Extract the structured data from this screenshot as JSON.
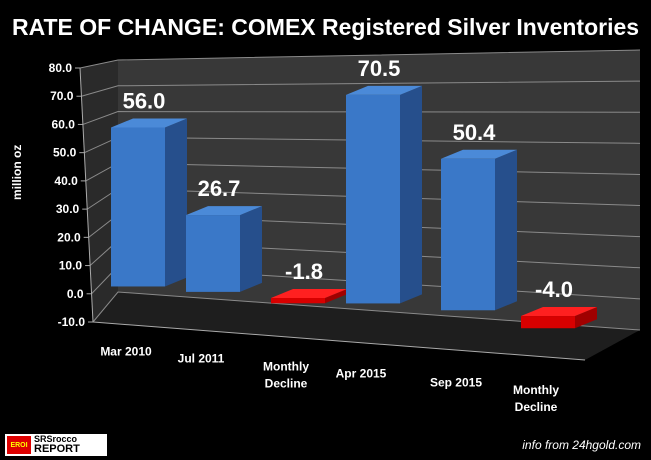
{
  "chart_data": {
    "type": "bar",
    "title": "RATE OF CHANGE: COMEX Registered Silver Inventories",
    "ylabel": "million oz",
    "xlabel": "",
    "categories": [
      "Mar 2010",
      "Jul 2011",
      "Monthly Decline",
      "Apr 2015",
      "Sep 2015",
      "Monthly Decline"
    ],
    "values": [
      56.0,
      26.7,
      -1.8,
      70.5,
      50.4,
      -4.0
    ],
    "data_labels": [
      "56.0",
      "26.7",
      "-1.8",
      "70.5",
      "50.4",
      "-4.0"
    ],
    "ylim": [
      -10,
      80
    ],
    "yticks": [
      "80.0",
      "70.0",
      "60.0",
      "50.0",
      "40.0",
      "30.0",
      "20.0",
      "10.0",
      "0.0",
      "-10.0"
    ],
    "grid": true,
    "style": "3d",
    "colors": {
      "positive": "#3a78c8",
      "negative": "#e00000",
      "background": "#000000",
      "wall": "#3a3a3a"
    }
  },
  "footer": {
    "logo_text": "SRSrocco REPORT",
    "source": "info from 24hgold.com"
  }
}
